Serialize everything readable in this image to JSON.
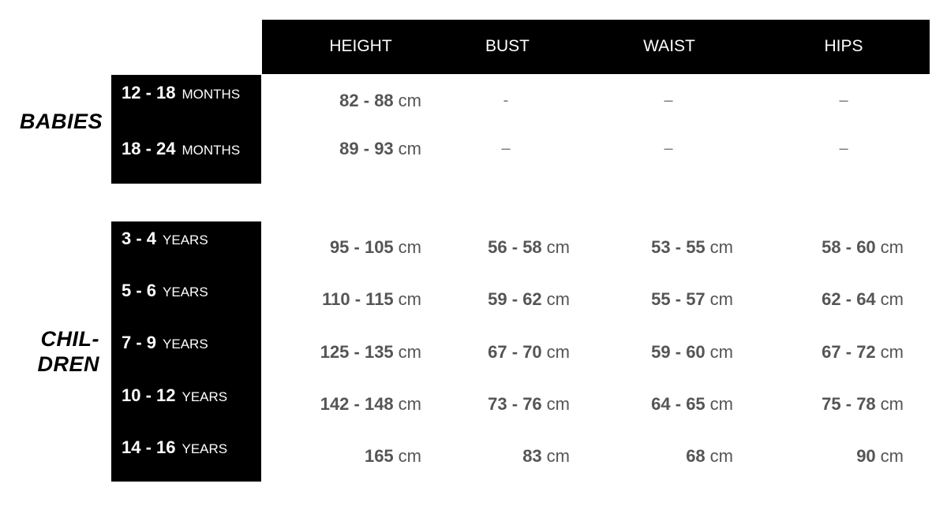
{
  "columns": [
    "HEIGHT",
    "BUST",
    "WAIST",
    "HIPS"
  ],
  "babies": {
    "label": "BABIES",
    "rows": [
      {
        "range": "12 - 18",
        "unit": "MONTHS",
        "height": "82 - 88",
        "height_unit": "cm",
        "bust": "-",
        "waist": "–",
        "hips": "–"
      },
      {
        "range": "18 - 24",
        "unit": "MONTHS",
        "height": "89 - 93",
        "height_unit": "cm",
        "bust": "–",
        "waist": "–",
        "hips": "–"
      }
    ]
  },
  "children": {
    "label_line1": "CHIL-",
    "label_line2": "DREN",
    "unit": "cm",
    "rows": [
      {
        "range": "3 - 4",
        "unit": "YEARS",
        "height": "95 - 105",
        "bust": "56 - 58",
        "waist": "53 - 55",
        "hips": "58 - 60"
      },
      {
        "range": "5 - 6",
        "unit": "YEARS",
        "height": "110 - 115",
        "bust": "59 - 62",
        "waist": "55 - 57",
        "hips": "62 - 64"
      },
      {
        "range": "7 - 9",
        "unit": "YEARS",
        "height": "125 - 135",
        "bust": "67 - 70",
        "waist": "59 - 60",
        "hips": "67 - 72"
      },
      {
        "range": "10 - 12",
        "unit": "YEARS",
        "height": "142 - 148",
        "bust": "73 - 76",
        "waist": "64 - 65",
        "hips": "75 - 78"
      },
      {
        "range": "14 - 16",
        "unit": "YEARS",
        "height": "165",
        "bust": "83",
        "waist": "68",
        "hips": "90"
      }
    ]
  }
}
